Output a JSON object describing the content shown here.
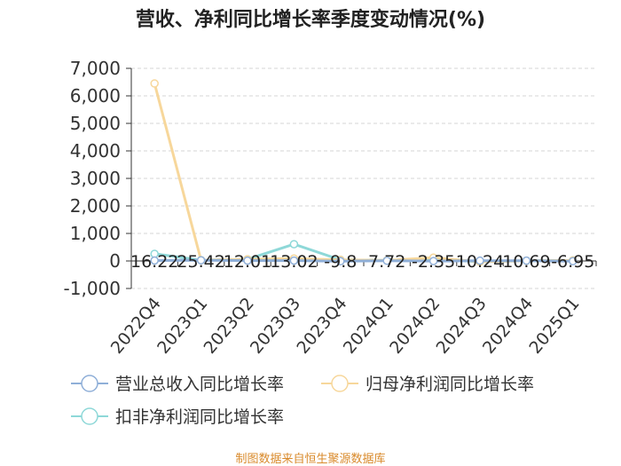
{
  "chart_data": {
    "type": "line",
    "title": "营收、净利同比增长率季度变动情况(%)",
    "categories": [
      "2022Q4",
      "2023Q1",
      "2023Q2",
      "2023Q3",
      "2023Q4",
      "2024Q1",
      "2024Q2",
      "2024Q3",
      "2024Q4",
      "2025Q1"
    ],
    "ylim": [
      -1000,
      7000
    ],
    "yticks": [
      7000,
      6000,
      5000,
      4000,
      3000,
      2000,
      1000,
      0,
      -1000
    ],
    "ytick_labels": [
      "7,000",
      "6,000",
      "5,000",
      "4,000",
      "3,000",
      "2,000",
      "1,000",
      "0",
      "-1,000"
    ],
    "grid": true,
    "legend_position": "bottom",
    "series": [
      {
        "name": "营业总收入同比增长率",
        "color": "#8fafd8",
        "values": [
          16.22,
          25.42,
          12.01,
          13.02,
          -9.8,
          7.72,
          -2.35,
          10.24,
          10.69,
          -6.95
        ],
        "labels": [
          "16.22",
          "25.42",
          "12.01",
          "13.02",
          "-9.8",
          "7.72",
          "-2.35",
          "10.24",
          "10.69",
          "-6.95"
        ]
      },
      {
        "name": "归母净利润同比增长率",
        "color": "#f7d79b",
        "values": [
          6450,
          30,
          60,
          90,
          40,
          20,
          120,
          -30,
          10,
          20
        ]
      },
      {
        "name": "扣非净利润同比增长率",
        "color": "#8ed8d8",
        "values": [
          260,
          30,
          60,
          610,
          40,
          20,
          60,
          -30,
          10,
          20
        ]
      }
    ]
  },
  "source_text": "制图数据来自恒生聚源数据库"
}
